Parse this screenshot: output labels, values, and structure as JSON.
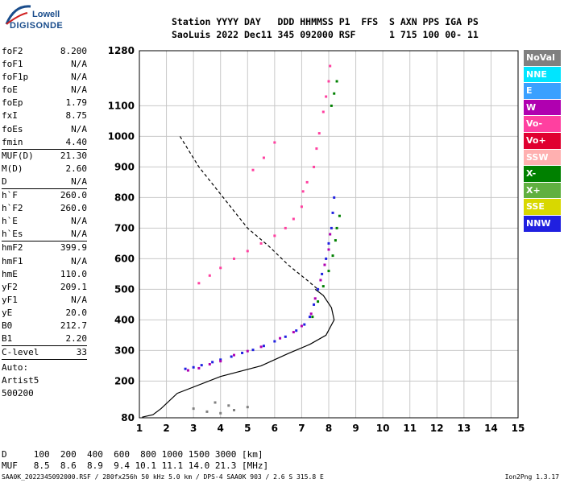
{
  "logo": {
    "line1": "Lowell",
    "line2": "DIGISONDE"
  },
  "header": {
    "line1": "Station YYYY DAY   DDD HHMMSS P1  FFS  S AXN PPS IGA PS",
    "line2": "SaoLuis 2022 Dec11 345 092000 RSF      1 715 100 00- 11"
  },
  "params": [
    {
      "label": "foF2",
      "value": "8.200"
    },
    {
      "label": "foF1",
      "value": "N/A"
    },
    {
      "label": "foF1p",
      "value": "N/A"
    },
    {
      "label": "foE",
      "value": "N/A"
    },
    {
      "label": "foEp",
      "value": "1.79"
    },
    {
      "label": "fxI",
      "value": "8.75"
    },
    {
      "label": "foEs",
      "value": "N/A"
    },
    {
      "label": "fmin",
      "value": "4.40"
    },
    {
      "label": "MUF(D)",
      "value": "21.30",
      "sep": true
    },
    {
      "label": "M(D)",
      "value": "2.60"
    },
    {
      "label": "D",
      "value": "N/A"
    },
    {
      "label": "h`F",
      "value": "260.0",
      "sep": true
    },
    {
      "label": "h`F2",
      "value": "260.0"
    },
    {
      "label": "h`E",
      "value": "N/A"
    },
    {
      "label": "h`Es",
      "value": "N/A"
    },
    {
      "label": "hmF2",
      "value": "399.9",
      "sep": true
    },
    {
      "label": "hmF1",
      "value": "N/A"
    },
    {
      "label": "hmE",
      "value": "110.0"
    },
    {
      "label": "yF2",
      "value": "209.1"
    },
    {
      "label": "yF1",
      "value": "N/A"
    },
    {
      "label": "yE",
      "value": "20.0"
    },
    {
      "label": "B0",
      "value": "212.7"
    },
    {
      "label": "B1",
      "value": "2.20"
    },
    {
      "label": "C-level",
      "value": "33",
      "sep": true
    }
  ],
  "notes": [
    "Auto:",
    "Artist5",
    "500200"
  ],
  "legend": [
    {
      "name": "NoVal",
      "color": "#808080"
    },
    {
      "name": "NNE",
      "color": "#00e5ff"
    },
    {
      "name": "E",
      "color": "#3aa0ff"
    },
    {
      "name": "W",
      "color": "#b000b0"
    },
    {
      "name": "Vo-",
      "color": "#ff40a0"
    },
    {
      "name": "Vo+",
      "color": "#e00030"
    },
    {
      "name": "SSW",
      "color": "#ffb0b0"
    },
    {
      "name": "X-",
      "color": "#008000"
    },
    {
      "name": "X+",
      "color": "#60b040"
    },
    {
      "name": "SSE",
      "color": "#d8d800"
    },
    {
      "name": "NNW",
      "color": "#2020e0"
    }
  ],
  "muf_table": {
    "line1": "D     100  200  400  600  800 1000 1500 3000 [km]",
    "line2": "MUF   8.5  8.6  8.9  9.4 10.1 11.1 14.0 21.3 [MHz]"
  },
  "footer": {
    "left": "SAA0K_2022345092000.RSF / 280fx256h 50 kHz 5.0 km / DPS-4 SAA0K 903 / 2.6 S 315.8 E",
    "right": "Ion2Png 1.3.17"
  },
  "chart_data": {
    "type": "scatter",
    "xlim": [
      1,
      15
    ],
    "ylim": [
      80,
      1280
    ],
    "xticks": [
      1,
      2,
      3,
      4,
      5,
      6,
      7,
      8,
      9,
      10,
      11,
      12,
      13,
      14,
      15
    ],
    "yticks": [
      80,
      200,
      300,
      400,
      500,
      600,
      700,
      800,
      900,
      1000,
      1100,
      1280
    ],
    "grid": true,
    "legend_position": "right",
    "series": [
      {
        "color": "#2020e0",
        "points": [
          [
            2.7,
            240
          ],
          [
            3.0,
            245
          ],
          [
            3.3,
            252
          ],
          [
            3.7,
            262
          ],
          [
            4.0,
            270
          ],
          [
            4.4,
            280
          ],
          [
            4.8,
            292
          ],
          [
            5.2,
            302
          ],
          [
            5.6,
            315
          ],
          [
            6.0,
            330
          ],
          [
            6.4,
            345
          ],
          [
            6.8,
            365
          ],
          [
            7.1,
            385
          ],
          [
            7.3,
            410
          ],
          [
            7.45,
            450
          ],
          [
            7.6,
            500
          ],
          [
            7.75,
            550
          ],
          [
            7.9,
            600
          ],
          [
            8.0,
            650
          ],
          [
            8.1,
            700
          ],
          [
            8.15,
            750
          ],
          [
            8.2,
            800
          ]
        ]
      },
      {
        "color": "#b000b0",
        "points": [
          [
            2.8,
            235
          ],
          [
            3.2,
            242
          ],
          [
            3.6,
            255
          ],
          [
            4.0,
            265
          ],
          [
            4.5,
            285
          ],
          [
            5.0,
            298
          ],
          [
            5.5,
            312
          ],
          [
            6.2,
            340
          ],
          [
            6.7,
            360
          ],
          [
            7.0,
            380
          ],
          [
            7.35,
            420
          ],
          [
            7.5,
            470
          ],
          [
            7.7,
            530
          ],
          [
            7.85,
            580
          ],
          [
            8.0,
            630
          ],
          [
            8.05,
            680
          ]
        ]
      },
      {
        "color": "#ff40a0",
        "points": [
          [
            3.2,
            520
          ],
          [
            3.6,
            545
          ],
          [
            4.0,
            570
          ],
          [
            4.5,
            600
          ],
          [
            5.0,
            625
          ],
          [
            5.5,
            650
          ],
          [
            6.0,
            675
          ],
          [
            6.4,
            700
          ],
          [
            6.7,
            730
          ],
          [
            7.0,
            770
          ],
          [
            7.05,
            820
          ],
          [
            7.2,
            850
          ],
          [
            5.2,
            890
          ],
          [
            5.6,
            930
          ],
          [
            6.0,
            980
          ],
          [
            7.45,
            900
          ],
          [
            7.55,
            960
          ],
          [
            7.65,
            1010
          ],
          [
            7.8,
            1080
          ],
          [
            7.9,
            1130
          ],
          [
            8.0,
            1180
          ],
          [
            8.05,
            1230
          ]
        ]
      },
      {
        "color": "#008000",
        "points": [
          [
            7.4,
            410
          ],
          [
            7.6,
            460
          ],
          [
            7.8,
            510
          ],
          [
            8.0,
            560
          ],
          [
            8.15,
            610
          ],
          [
            8.25,
            660
          ],
          [
            8.3,
            700
          ],
          [
            8.4,
            740
          ],
          [
            8.1,
            1100
          ],
          [
            8.2,
            1140
          ],
          [
            8.3,
            1180
          ]
        ]
      },
      {
        "color": "#808080",
        "points": [
          [
            3.0,
            110
          ],
          [
            3.5,
            100
          ],
          [
            4.0,
            95
          ],
          [
            4.5,
            105
          ],
          [
            5.0,
            115
          ],
          [
            3.8,
            130
          ],
          [
            4.3,
            120
          ]
        ]
      }
    ],
    "profile_curve": [
      [
        1.1,
        82
      ],
      [
        1.5,
        90
      ],
      [
        1.8,
        110
      ],
      [
        2.4,
        160
      ],
      [
        4.0,
        215
      ],
      [
        5.5,
        250
      ],
      [
        6.5,
        290
      ],
      [
        7.3,
        320
      ],
      [
        7.9,
        350
      ],
      [
        8.2,
        400
      ],
      [
        8.1,
        440
      ],
      [
        7.8,
        480
      ],
      [
        7.5,
        500
      ]
    ],
    "dashed_curve": [
      [
        2.5,
        1000
      ],
      [
        3.2,
        900
      ],
      [
        4.1,
        800
      ],
      [
        5.0,
        700
      ],
      [
        5.8,
        640
      ],
      [
        6.5,
        580
      ],
      [
        7.2,
        530
      ],
      [
        7.6,
        500
      ]
    ]
  }
}
